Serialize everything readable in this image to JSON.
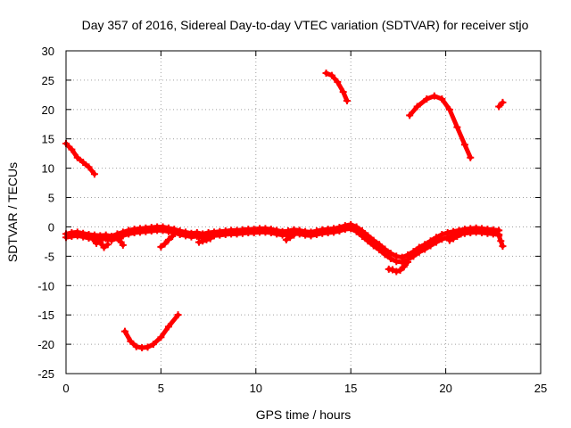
{
  "chart_data": {
    "type": "scatter",
    "title": "Day 357 of 2016, Sidereal Day-to-day VTEC variation (SDTVAR) for receiver stjo",
    "xlabel": "GPS time / hours",
    "ylabel": "SDTVAR / TECUs",
    "xlim": [
      0,
      25
    ],
    "ylim": [
      -25,
      30
    ],
    "x_ticks": [
      0,
      5,
      10,
      15,
      20,
      25
    ],
    "y_ticks": [
      -25,
      -20,
      -15,
      -10,
      -5,
      0,
      5,
      10,
      15,
      20,
      25,
      30
    ],
    "x_tick_labels": [
      "0",
      "5",
      "10",
      "15",
      "20",
      "25"
    ],
    "y_tick_labels": [
      "-25",
      "-20",
      "-15",
      "-10",
      "-5",
      "0",
      "5",
      "10",
      "15",
      "20",
      "25",
      "30"
    ],
    "grid": true,
    "legend": "none",
    "marker_color": "#ff0000",
    "series": [
      {
        "x": [
          0.0,
          0.3,
          0.6,
          0.9,
          1.2,
          1.5
        ],
        "y": [
          14.2,
          13.2,
          11.8,
          11.0,
          10.2,
          9.0
        ]
      },
      {
        "x": [
          3.1,
          3.4,
          3.7,
          4.0,
          4.3,
          4.6,
          5.0,
          5.4,
          5.9
        ],
        "y": [
          -17.8,
          -19.5,
          -20.4,
          -20.6,
          -20.5,
          -20.0,
          -18.8,
          -17.0,
          -15.0
        ]
      },
      {
        "x": [
          13.7,
          14.0,
          14.3,
          14.6,
          14.8
        ],
        "y": [
          26.2,
          25.8,
          24.7,
          23.0,
          21.5
        ]
      },
      {
        "x": [
          18.1,
          18.5,
          19.0,
          19.4,
          19.8,
          20.2,
          20.6,
          21.0,
          21.3
        ],
        "y": [
          19.0,
          20.5,
          21.8,
          22.3,
          21.8,
          20.0,
          17.0,
          14.0,
          11.8
        ]
      },
      {
        "x": [
          22.8,
          23.0
        ],
        "y": [
          20.5,
          21.2
        ]
      },
      {
        "x": [
          0.0,
          0.3,
          0.6,
          0.9,
          1.2,
          1.5,
          1.8,
          2.1,
          2.4,
          2.7,
          3.0,
          3.3,
          3.6,
          3.9,
          4.2,
          4.5,
          4.8,
          5.1,
          5.4,
          5.7,
          6.0,
          6.3,
          6.6,
          6.9,
          7.2,
          7.5,
          7.8,
          8.1,
          8.4,
          8.7,
          9.0,
          9.3,
          9.6,
          9.9,
          10.2,
          10.5,
          10.8,
          11.1,
          11.4,
          11.7,
          12.0,
          12.3,
          12.6,
          12.9,
          13.2,
          13.5,
          13.8,
          14.1,
          14.4,
          14.7,
          15.0,
          15.3,
          15.6,
          15.9,
          16.2,
          16.5,
          16.8,
          17.1,
          17.4,
          17.7,
          18.0,
          18.3,
          18.6,
          18.9,
          19.2,
          19.5,
          19.8,
          20.1,
          20.4,
          20.7,
          21.0,
          21.3,
          21.6,
          21.9,
          22.2,
          22.5,
          22.8
        ],
        "y": [
          -1.2,
          -1.0,
          -0.9,
          -1.1,
          -1.3,
          -1.4,
          -1.5,
          -1.4,
          -1.6,
          -1.2,
          -0.9,
          -0.6,
          -0.4,
          -0.3,
          -0.2,
          -0.1,
          0.0,
          0.0,
          -0.2,
          -0.4,
          -0.7,
          -0.9,
          -1.1,
          -1.0,
          -1.2,
          -1.0,
          -0.9,
          -0.8,
          -0.7,
          -0.6,
          -0.6,
          -0.5,
          -0.4,
          -0.4,
          -0.3,
          -0.3,
          -0.4,
          -0.6,
          -0.8,
          -0.7,
          -0.5,
          -0.6,
          -0.8,
          -0.9,
          -0.7,
          -0.5,
          -0.4,
          -0.3,
          -0.1,
          0.2,
          0.4,
          0.0,
          -0.7,
          -1.5,
          -2.3,
          -3.0,
          -3.8,
          -4.5,
          -5.0,
          -5.2,
          -4.8,
          -4.2,
          -3.5,
          -3.0,
          -2.4,
          -1.8,
          -1.3,
          -1.0,
          -0.8,
          -0.6,
          -0.4,
          -0.3,
          -0.2,
          -0.3,
          -0.4,
          -0.5,
          -0.6
        ]
      },
      {
        "x": [
          0.0,
          0.3,
          0.6,
          0.9,
          1.2,
          1.5,
          1.8,
          2.1,
          2.4,
          2.7,
          3.0,
          3.3,
          3.6,
          3.9,
          4.2,
          4.5,
          4.8,
          5.1,
          5.4,
          5.7,
          6.0,
          6.3,
          6.6,
          6.9,
          7.2,
          7.5,
          7.8,
          8.1,
          8.4,
          8.7,
          9.0,
          9.3,
          9.6,
          9.9,
          10.2,
          10.5,
          10.8,
          11.1,
          11.4,
          11.7,
          12.0,
          12.3,
          12.6,
          12.9,
          13.2,
          13.5,
          13.8,
          14.1,
          14.4,
          14.7,
          15.0,
          15.3,
          15.6,
          15.9,
          16.2,
          16.5,
          16.8,
          17.1,
          17.4,
          17.7,
          18.0,
          18.3,
          18.6,
          18.9,
          19.2,
          19.5,
          19.8,
          20.1,
          20.4,
          20.7,
          21.0,
          21.3,
          21.6,
          21.9,
          22.2,
          22.5,
          22.8
        ],
        "y": [
          -1.8,
          -1.6,
          -1.5,
          -1.7,
          -1.9,
          -2.0,
          -2.1,
          -2.0,
          -2.3,
          -1.9,
          -1.5,
          -1.2,
          -1.0,
          -0.9,
          -0.8,
          -0.7,
          -0.6,
          -0.6,
          -0.8,
          -1.0,
          -1.3,
          -1.5,
          -1.7,
          -1.6,
          -1.8,
          -1.6,
          -1.5,
          -1.4,
          -1.3,
          -1.2,
          -1.2,
          -1.1,
          -1.0,
          -1.0,
          -0.9,
          -0.9,
          -1.0,
          -1.2,
          -1.4,
          -1.3,
          -1.1,
          -1.2,
          -1.4,
          -1.5,
          -1.3,
          -1.1,
          -1.0,
          -0.9,
          -0.7,
          -0.4,
          -0.3,
          -0.8,
          -1.6,
          -2.4,
          -3.2,
          -3.9,
          -4.7,
          -5.4,
          -5.9,
          -6.0,
          -5.6,
          -5.0,
          -4.3,
          -3.8,
          -3.2,
          -2.6,
          -2.1,
          -1.8,
          -1.5,
          -1.3,
          -1.1,
          -1.0,
          -0.9,
          -1.0,
          -1.1,
          -1.2,
          -1.3
        ]
      },
      {
        "x": [
          1.4,
          1.6,
          1.8,
          2.0,
          2.2
        ],
        "y": [
          -2.0,
          -2.8,
          -2.6,
          -3.5,
          -3.0
        ]
      },
      {
        "x": [
          2.8,
          2.9,
          3.0
        ],
        "y": [
          -2.0,
          -2.6,
          -3.1
        ]
      },
      {
        "x": [
          5.0,
          5.2,
          5.4,
          5.6
        ],
        "y": [
          -3.4,
          -2.9,
          -2.2,
          -1.6
        ]
      },
      {
        "x": [
          7.0,
          7.2,
          7.4,
          7.6
        ],
        "y": [
          -2.6,
          -2.4,
          -2.2,
          -2.0
        ]
      },
      {
        "x": [
          11.6,
          11.8,
          12.0
        ],
        "y": [
          -2.2,
          -1.8,
          -1.4
        ]
      },
      {
        "x": [
          17.0,
          17.2,
          17.4,
          17.6,
          17.8,
          18.0
        ],
        "y": [
          -7.2,
          -7.3,
          -7.6,
          -7.4,
          -6.8,
          -6.0
        ]
      },
      {
        "x": [
          20.2,
          20.4,
          20.6,
          20.8
        ],
        "y": [
          -2.3,
          -2.0,
          -1.6,
          -1.2
        ]
      },
      {
        "x": [
          22.8,
          22.9,
          23.0
        ],
        "y": [
          -1.5,
          -2.4,
          -3.3
        ]
      }
    ]
  }
}
